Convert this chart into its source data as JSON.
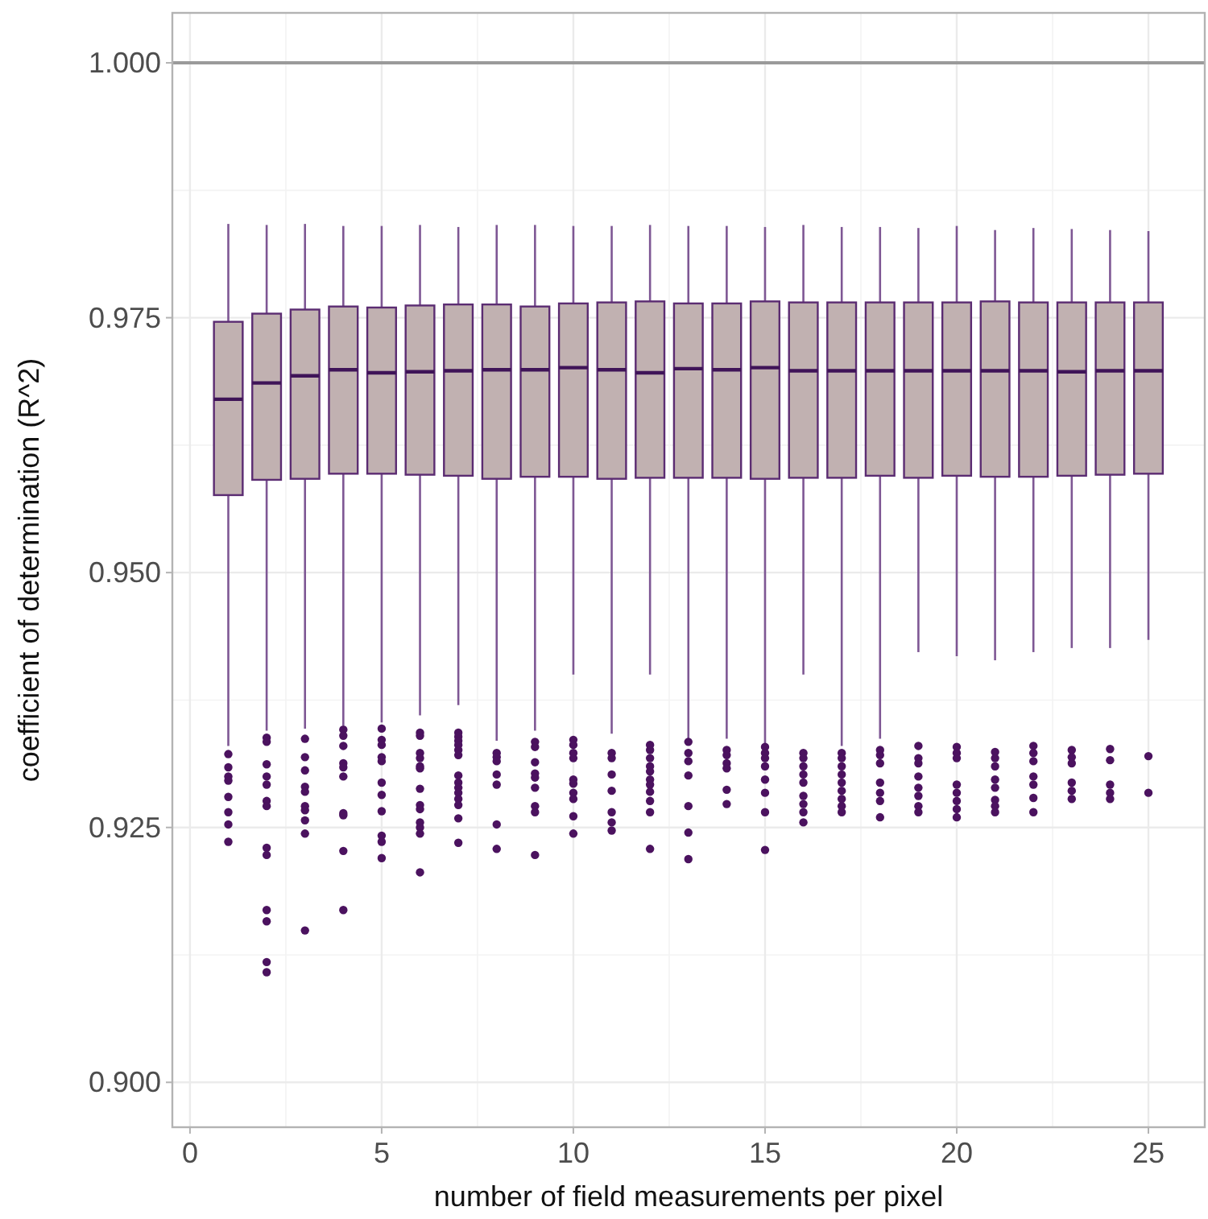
{
  "chart_data": {
    "type": "box",
    "xlabel": "number of field measurements per pixel",
    "ylabel": "coefficient of determination (R^2)",
    "x": [
      1,
      2,
      3,
      4,
      5,
      6,
      7,
      8,
      9,
      10,
      11,
      12,
      13,
      14,
      15,
      16,
      17,
      18,
      19,
      20,
      21,
      22,
      23,
      24,
      25
    ],
    "xlim": [
      -0.46,
      26.47
    ],
    "xticks": [
      0,
      5,
      10,
      15,
      20,
      25
    ],
    "ylim": [
      0.8956,
      1.0049
    ],
    "yticks": [
      {
        "value": 0.9,
        "label": "0.900"
      },
      {
        "value": 0.925,
        "label": "0.925"
      },
      {
        "value": 0.95,
        "label": "0.950"
      },
      {
        "value": 0.975,
        "label": "0.975"
      },
      {
        "value": 1,
        "label": "1.000"
      }
    ],
    "grid": true,
    "color": "#c1b1b1",
    "ref_lines": [
      {
        "axis": "y",
        "value": 1,
        "color": "#9a9a9a"
      }
    ],
    "boxes": [
      {
        "low": 0.933,
        "q1": 0.9576,
        "median": 0.967,
        "q3": 0.9746,
        "high": 0.9842,
        "outliers": [
          0.9322,
          0.9309,
          0.93,
          0.9296,
          0.928,
          0.9265,
          0.9253,
          0.9236
        ]
      },
      {
        "low": 0.9345,
        "q1": 0.9591,
        "median": 0.9686,
        "q3": 0.9754,
        "high": 0.9841,
        "outliers": [
          0.9338,
          0.9334,
          0.9312,
          0.93,
          0.9292,
          0.9276,
          0.9271,
          0.923,
          0.9223,
          0.9169,
          0.9158,
          0.9118,
          0.9108
        ]
      },
      {
        "low": 0.9347,
        "q1": 0.9592,
        "median": 0.9693,
        "q3": 0.9758,
        "high": 0.9842,
        "outliers": [
          0.9337,
          0.9319,
          0.9306,
          0.929,
          0.9285,
          0.9271,
          0.9267,
          0.9257,
          0.9244,
          0.9149
        ]
      },
      {
        "low": 0.935,
        "q1": 0.9597,
        "median": 0.9699,
        "q3": 0.9761,
        "high": 0.984,
        "outliers": [
          0.9346,
          0.934,
          0.933,
          0.9313,
          0.9309,
          0.93,
          0.9264,
          0.9262,
          0.9227,
          0.9169
        ]
      },
      {
        "low": 0.9353,
        "q1": 0.9597,
        "median": 0.9696,
        "q3": 0.976,
        "high": 0.984,
        "outliers": [
          0.9347,
          0.9336,
          0.9331,
          0.9319,
          0.9315,
          0.9294,
          0.9282,
          0.9266,
          0.9242,
          0.9236,
          0.922
        ]
      },
      {
        "low": 0.936,
        "q1": 0.9596,
        "median": 0.9697,
        "q3": 0.9762,
        "high": 0.9841,
        "outliers": [
          0.9343,
          0.934,
          0.9323,
          0.9318,
          0.931,
          0.9308,
          0.9288,
          0.9272,
          0.9268,
          0.9255,
          0.925,
          0.9244,
          0.9206
        ]
      },
      {
        "low": 0.937,
        "q1": 0.9595,
        "median": 0.9698,
        "q3": 0.9763,
        "high": 0.9839,
        "outliers": [
          0.9343,
          0.9339,
          0.9335,
          0.9331,
          0.9326,
          0.9321,
          0.9301,
          0.9294,
          0.9289,
          0.9284,
          0.9278,
          0.9272,
          0.9259,
          0.9235
        ]
      },
      {
        "low": 0.9335,
        "q1": 0.9592,
        "median": 0.9699,
        "q3": 0.9763,
        "high": 0.9841,
        "outliers": [
          0.9323,
          0.9319,
          0.9315,
          0.9302,
          0.9292,
          0.9253,
          0.9229
        ]
      },
      {
        "low": 0.9345,
        "q1": 0.9594,
        "median": 0.9699,
        "q3": 0.9761,
        "high": 0.9841,
        "outliers": [
          0.9334,
          0.9329,
          0.9314,
          0.9303,
          0.9299,
          0.9289,
          0.9271,
          0.9265,
          0.9223
        ]
      },
      {
        "low": 0.94,
        "q1": 0.9594,
        "median": 0.9701,
        "q3": 0.9764,
        "high": 0.984,
        "outliers": [
          0.9336,
          0.9331,
          0.9323,
          0.9318,
          0.9297,
          0.9293,
          0.9284,
          0.9278,
          0.9261,
          0.9244
        ]
      },
      {
        "low": 0.9342,
        "q1": 0.9592,
        "median": 0.9699,
        "q3": 0.9765,
        "high": 0.984,
        "outliers": [
          0.9323,
          0.9318,
          0.9302,
          0.9286,
          0.9265,
          0.9255,
          0.9247
        ]
      },
      {
        "low": 0.94,
        "q1": 0.9593,
        "median": 0.9696,
        "q3": 0.9766,
        "high": 0.9841,
        "outliers": [
          0.9331,
          0.9326,
          0.9318,
          0.931,
          0.9305,
          0.9297,
          0.9292,
          0.9285,
          0.9276,
          0.9265,
          0.9229
        ]
      },
      {
        "low": 0.9334,
        "q1": 0.9593,
        "median": 0.97,
        "q3": 0.9764,
        "high": 0.984,
        "outliers": [
          0.9334,
          0.9323,
          0.9315,
          0.9301,
          0.9271,
          0.9245,
          0.9219
        ]
      },
      {
        "low": 0.9337,
        "q1": 0.9593,
        "median": 0.9699,
        "q3": 0.9764,
        "high": 0.984,
        "outliers": [
          0.9326,
          0.9321,
          0.9313,
          0.9308,
          0.9287,
          0.9273
        ]
      },
      {
        "low": 0.933,
        "q1": 0.9592,
        "median": 0.9701,
        "q3": 0.9766,
        "high": 0.9839,
        "outliers": [
          0.9329,
          0.9323,
          0.9318,
          0.931,
          0.9297,
          0.9284,
          0.9265,
          0.9228
        ]
      },
      {
        "low": 0.94,
        "q1": 0.9593,
        "median": 0.9698,
        "q3": 0.9765,
        "high": 0.9841,
        "outliers": [
          0.9323,
          0.9318,
          0.931,
          0.9302,
          0.9294,
          0.9281,
          0.9273,
          0.9265,
          0.9255
        ]
      },
      {
        "low": 0.933,
        "q1": 0.9593,
        "median": 0.9698,
        "q3": 0.9765,
        "high": 0.9839,
        "outliers": [
          0.9323,
          0.9318,
          0.931,
          0.9302,
          0.9294,
          0.9286,
          0.9278,
          0.9271,
          0.9265
        ]
      },
      {
        "low": 0.9337,
        "q1": 0.9595,
        "median": 0.9698,
        "q3": 0.9765,
        "high": 0.9839,
        "outliers": [
          0.9326,
          0.9321,
          0.9313,
          0.9294,
          0.9284,
          0.9276,
          0.926
        ]
      },
      {
        "low": 0.9422,
        "q1": 0.9593,
        "median": 0.9698,
        "q3": 0.9765,
        "high": 0.9838,
        "outliers": [
          0.933,
          0.9318,
          0.9313,
          0.93,
          0.9289,
          0.9281,
          0.9271,
          0.9265
        ]
      },
      {
        "low": 0.9418,
        "q1": 0.9595,
        "median": 0.9698,
        "q3": 0.9765,
        "high": 0.984,
        "outliers": [
          0.9329,
          0.9323,
          0.9318,
          0.9292,
          0.9284,
          0.9276,
          0.9268,
          0.926
        ]
      },
      {
        "low": 0.9414,
        "q1": 0.9594,
        "median": 0.9698,
        "q3": 0.9766,
        "high": 0.9836,
        "outliers": [
          0.9324,
          0.9318,
          0.931,
          0.9297,
          0.9289,
          0.9277,
          0.9271,
          0.9265
        ]
      },
      {
        "low": 0.9422,
        "q1": 0.9594,
        "median": 0.9698,
        "q3": 0.9765,
        "high": 0.9838,
        "outliers": [
          0.933,
          0.9323,
          0.9315,
          0.93,
          0.9292,
          0.9279,
          0.9265
        ]
      },
      {
        "low": 0.9426,
        "q1": 0.9595,
        "median": 0.9697,
        "q3": 0.9765,
        "high": 0.9837,
        "outliers": [
          0.9326,
          0.9319,
          0.9313,
          0.9294,
          0.9286,
          0.9278
        ]
      },
      {
        "low": 0.9426,
        "q1": 0.9596,
        "median": 0.9698,
        "q3": 0.9765,
        "high": 0.9836,
        "outliers": [
          0.9327,
          0.9316,
          0.9292,
          0.9284,
          0.9278
        ]
      },
      {
        "low": 0.9434,
        "q1": 0.9597,
        "median": 0.9698,
        "q3": 0.9765,
        "high": 0.9835,
        "outliers": [
          0.932,
          0.9284
        ]
      }
    ]
  }
}
